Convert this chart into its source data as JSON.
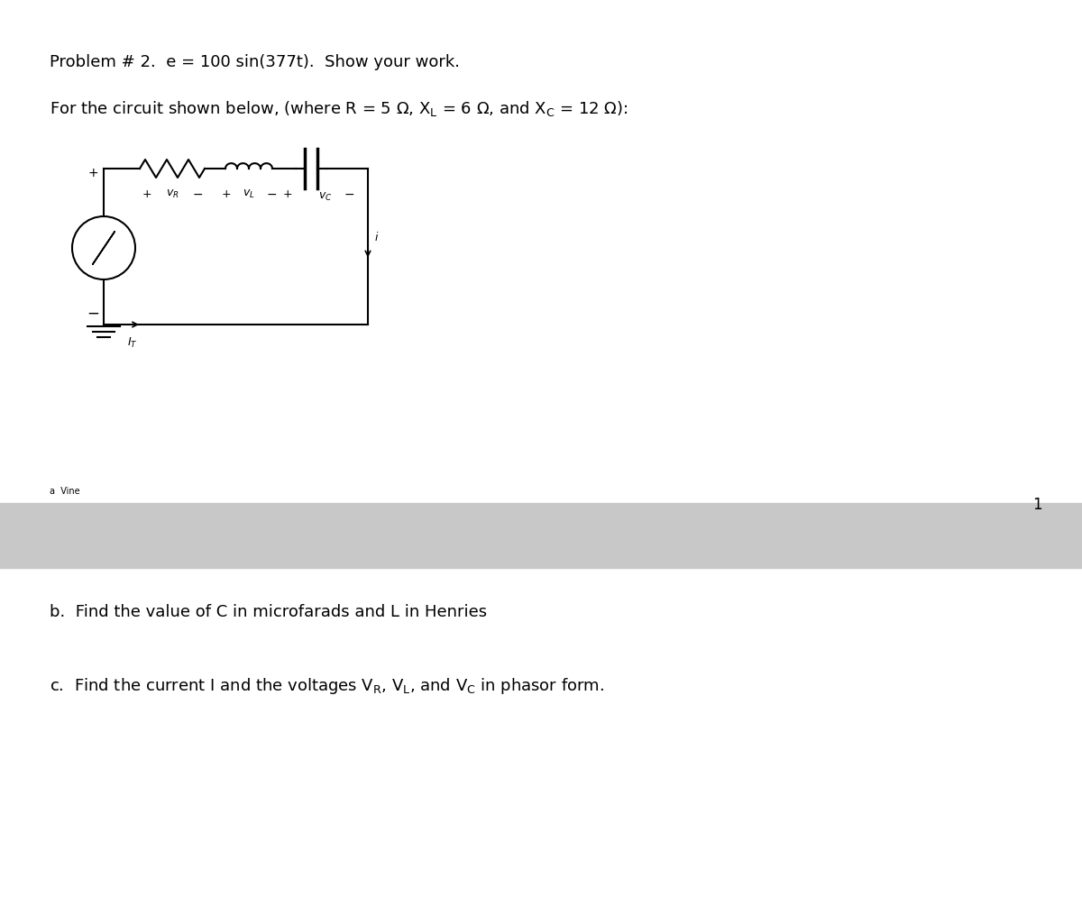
{
  "title_line1": "Problem # 2.  e = 100 sin(377t).  Show your work.",
  "title_line2": "For the circuit shown below, (where R = 5 Ω, Xₗ = 6 Ω, and X₆ = 12 Ω):",
  "line2_formatted": "For the circuit shown below, (where R = 5 Ω, X_L = 6 Ω, and X_C = 12 Ω):",
  "part_b": "b.  Find the value of C in microfarads and L in Henries",
  "part_c": "c.  Find the current I and the voltages Vᴿ, Vₗ, and V₆ in phasor form.",
  "bg_color": "#ffffff",
  "text_color": "#000000",
  "gray_bar_color": "#c8c8c8",
  "circuit_line_color": "#000000",
  "font_size_title": 13,
  "font_size_parts": 13,
  "page_number": "1"
}
